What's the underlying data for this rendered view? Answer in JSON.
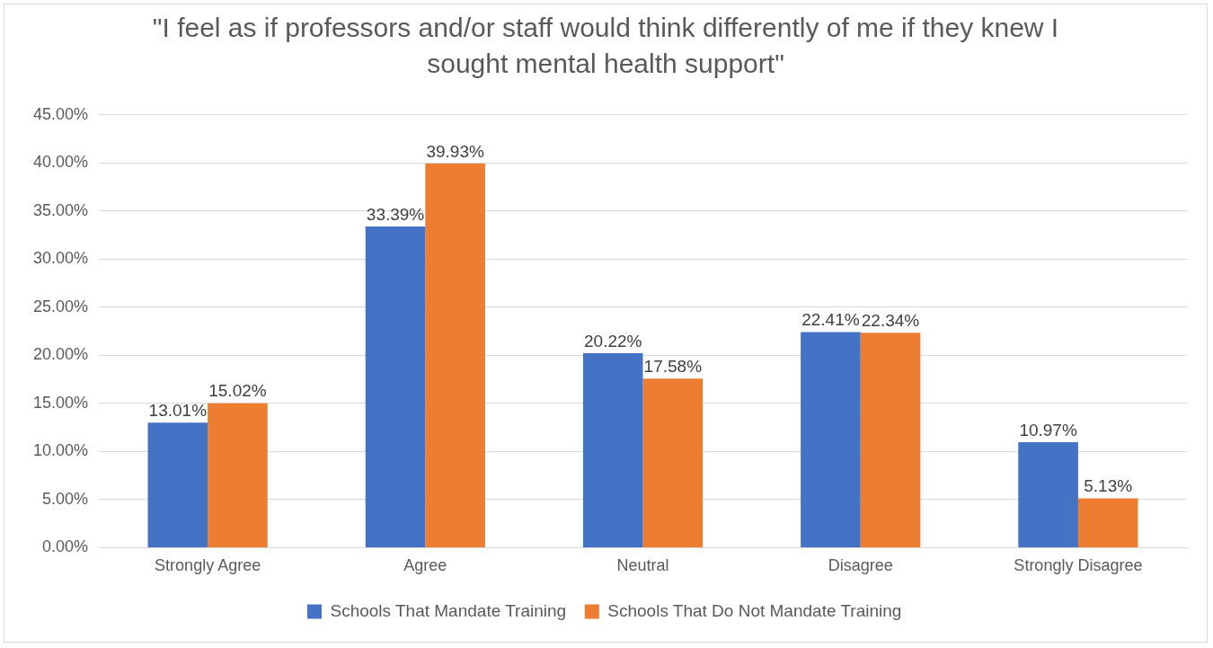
{
  "chart_data": {
    "type": "bar",
    "title": "\"I feel as if professors and/or staff would think differently of me if they knew I sought mental health support\"",
    "categories": [
      "Strongly Agree",
      "Agree",
      "Neutral",
      "Disagree",
      "Strongly Disagree"
    ],
    "series": [
      {
        "name": "Schools That Mandate Training",
        "color": "#4472c4",
        "values": [
          13.01,
          33.39,
          20.22,
          22.41,
          10.97
        ],
        "value_labels": [
          "13.01%",
          "33.39%",
          "20.22%",
          "22.41%",
          "10.97%"
        ]
      },
      {
        "name": "Schools That Do Not Mandate Training",
        "color": "#ed7d31",
        "values": [
          15.02,
          39.93,
          17.58,
          22.34,
          5.13
        ],
        "value_labels": [
          "15.02%",
          "39.93%",
          "17.58%",
          "22.34%",
          "5.13%"
        ]
      }
    ],
    "ylim": [
      0,
      45
    ],
    "yticks": [
      {
        "value": 0,
        "label": "0.00%"
      },
      {
        "value": 5,
        "label": "5.00%"
      },
      {
        "value": 10,
        "label": "10.00%"
      },
      {
        "value": 15,
        "label": "15.00%"
      },
      {
        "value": 20,
        "label": "20.00%"
      },
      {
        "value": 25,
        "label": "25.00%"
      },
      {
        "value": 30,
        "label": "30.00%"
      },
      {
        "value": 35,
        "label": "35.00%"
      },
      {
        "value": 40,
        "label": "40.00%"
      },
      {
        "value": 45,
        "label": "45.00%"
      }
    ],
    "grid": "y",
    "legend": "bottom"
  }
}
